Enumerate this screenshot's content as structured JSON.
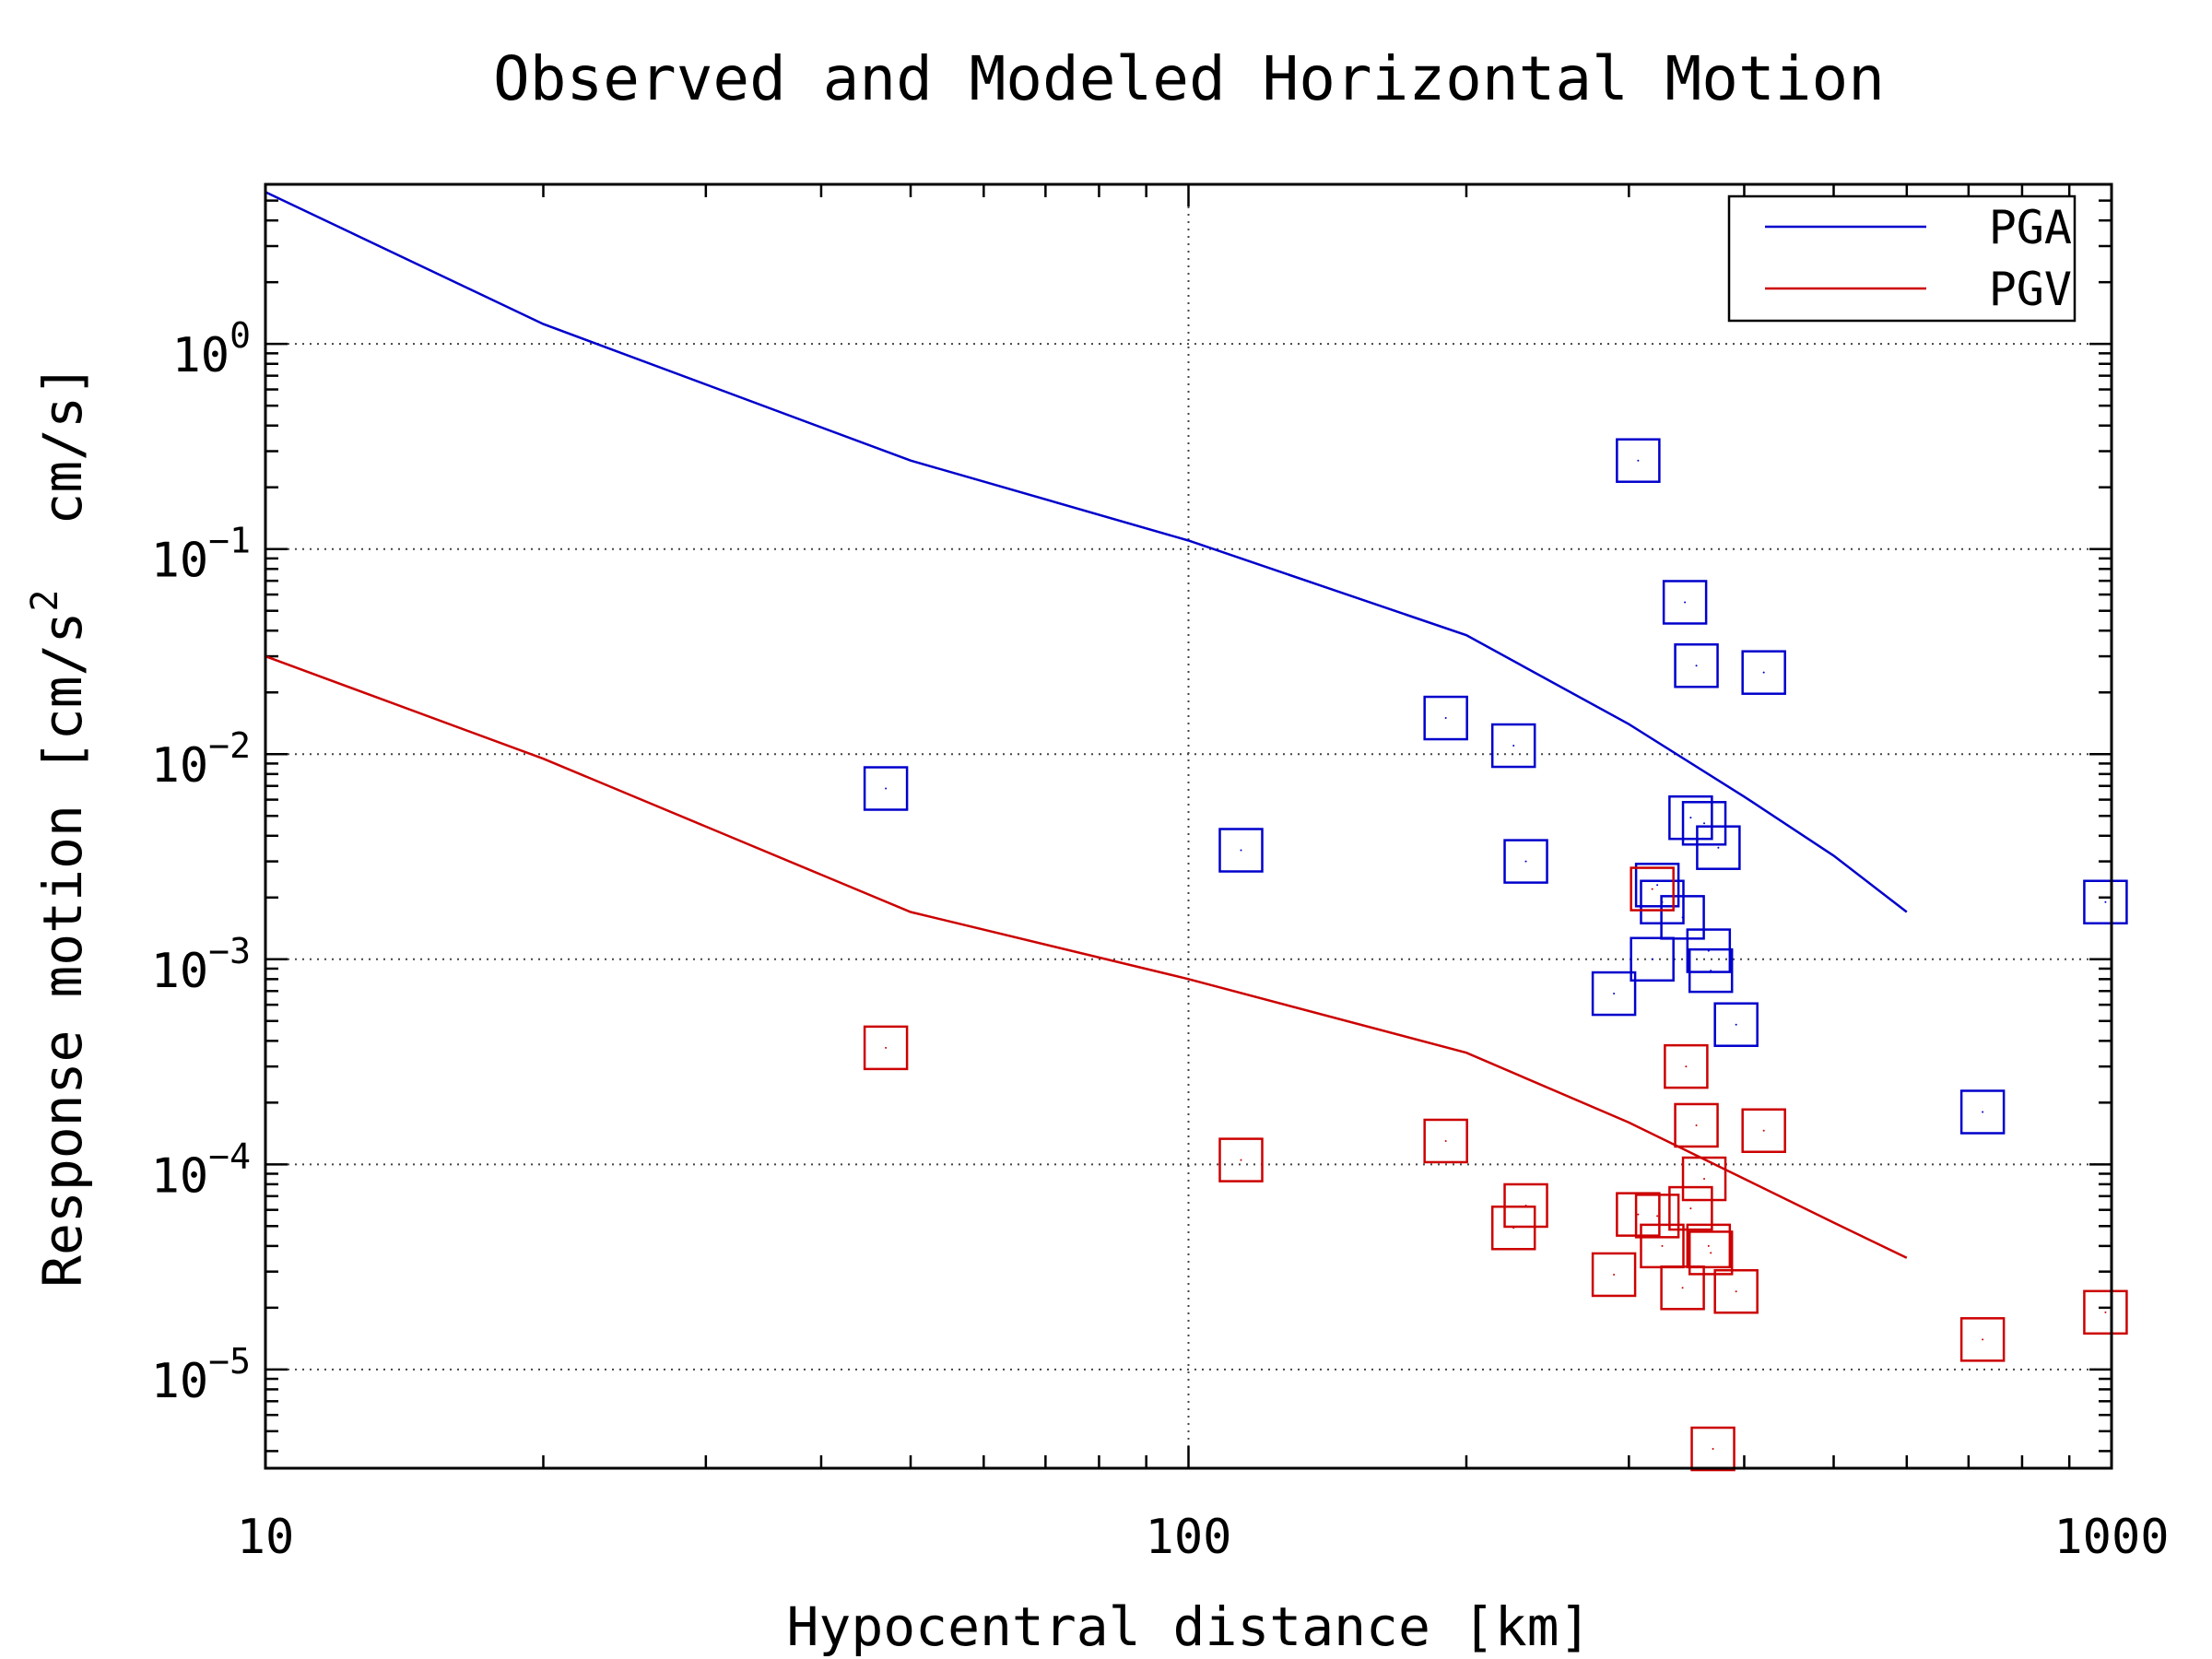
{
  "chart_data": {
    "type": "scatter",
    "title": "Observed and Modeled Horizontal Motion",
    "xlabel": "Hypocentral distance [km]",
    "ylabel": {
      "part1": "Response motion [cm/s",
      "sup": "2",
      "part2": "  cm/s]"
    },
    "x_scale": "log",
    "y_scale": "log",
    "xlim": [
      10,
      1000
    ],
    "ylim": [
      3.3e-06,
      6
    ],
    "x_ticks": [
      {
        "value": 10,
        "label": "10"
      },
      {
        "value": 100,
        "label": "100"
      },
      {
        "value": 1000,
        "label": "1000"
      }
    ],
    "y_ticks": [
      {
        "value": 1,
        "base": "10",
        "exp": "0"
      },
      {
        "value": 0.1,
        "base": "10",
        "exp": "−1"
      },
      {
        "value": 0.01,
        "base": "10",
        "exp": "−2"
      },
      {
        "value": 0.001,
        "base": "10",
        "exp": "−3"
      },
      {
        "value": 0.0001,
        "base": "10",
        "exp": "−4"
      },
      {
        "value": 1e-05,
        "base": "10",
        "exp": "−5"
      }
    ],
    "grid": "dotted",
    "legend_position": "top-right",
    "series": [
      {
        "name": "PGA",
        "kind": "line",
        "color": "#0000cc",
        "x": [
          10,
          20,
          50,
          100,
          200,
          300,
          400,
          500,
          600
        ],
        "y": [
          5.5,
          1.25,
          0.27,
          0.11,
          0.038,
          0.014,
          0.0062,
          0.0032,
          0.0017
        ]
      },
      {
        "name": "PGV",
        "kind": "line",
        "color": "#cc0000",
        "x": [
          10,
          20,
          50,
          100,
          200,
          300,
          400,
          500,
          600
        ],
        "y": [
          0.03,
          0.0095,
          0.0017,
          0.0008,
          0.00035,
          0.00016,
          8.5e-05,
          5.2e-05,
          3.5e-05
        ]
      },
      {
        "kind": "marker",
        "marker": "square",
        "color": "#0000cc",
        "x": [
          47,
          114,
          190,
          225,
          232,
          307,
          318,
          322,
          326,
          343,
          345,
          350,
          355,
          362,
          366,
          368,
          375,
          392,
          420,
          725,
          985
        ],
        "y": [
          0.0068,
          0.0034,
          0.015,
          0.011,
          0.003,
          0.27,
          0.001,
          0.0023,
          0.0019,
          0.0016,
          0.055,
          0.0049,
          0.027,
          0.0046,
          0.0011,
          0.00088,
          0.0035,
          0.00048,
          0.025,
          0.00018,
          0.0019
        ]
      },
      {
        "kind": "marker",
        "marker": "square",
        "color": "#cc0000",
        "x": [
          47,
          114,
          190,
          225,
          232,
          289,
          307,
          318,
          322,
          326,
          343,
          346,
          350,
          355,
          362,
          366,
          368,
          370,
          392,
          420,
          725,
          985
        ],
        "y": [
          0.00037,
          0.000105,
          0.00013,
          4.9e-05,
          6.3e-05,
          2.9e-05,
          5.7e-05,
          0.0022,
          5.6e-05,
          4e-05,
          2.5e-05,
          0.0003,
          6.1e-05,
          0.000155,
          8.5e-05,
          4e-05,
          3.7e-05,
          4.1e-06,
          2.4e-05,
          0.000146,
          1.4e-05,
          1.9e-05
        ]
      },
      {
        "kind": "marker",
        "marker": "square",
        "color": "#0000cc",
        "x": [
          289
        ],
        "y": [
          0.00068
        ]
      }
    ]
  }
}
